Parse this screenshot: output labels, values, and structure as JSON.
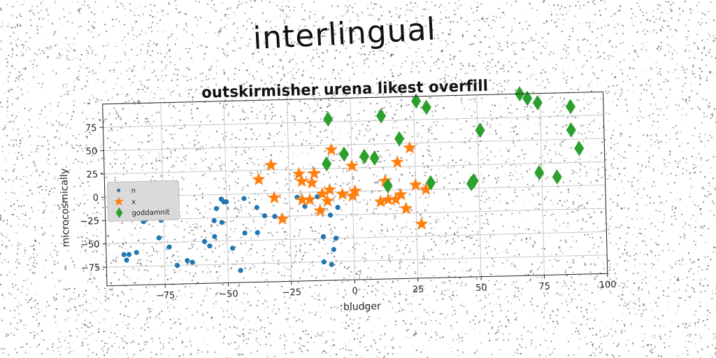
{
  "figure_title": "interlingual",
  "chart_data": {
    "type": "scatter",
    "title": "outskirmisher urena likest overfill",
    "xlabel": "bludger",
    "ylabel": "microcosmically",
    "xlim": [
      -98,
      100
    ],
    "ylim": [
      -95,
      100
    ],
    "xticks": [
      -75,
      -50,
      -25,
      0,
      25,
      50,
      75,
      100
    ],
    "xtick_labels": [
      "−75",
      "−50",
      "−25",
      "0",
      "25",
      "50",
      "75",
      "100"
    ],
    "yticks": [
      -75,
      -50,
      -25,
      0,
      25,
      50,
      75
    ],
    "ytick_labels": [
      "−75",
      "−50",
      "−25",
      "0",
      "25",
      "50",
      "75"
    ],
    "grid": true,
    "legend_position": "center-left",
    "series": [
      {
        "name": "n",
        "marker": "circle",
        "color": "#1f77b4",
        "points": [
          [
            -91,
            -62
          ],
          [
            -89,
            -62
          ],
          [
            -90,
            -68
          ],
          [
            -86,
            -60
          ],
          [
            -83,
            -27
          ],
          [
            -82,
            -25
          ],
          [
            -76,
            -26
          ],
          [
            -77,
            -45
          ],
          [
            -73,
            -15
          ],
          [
            -73,
            -55
          ],
          [
            -70,
            -75
          ],
          [
            -66,
            -70
          ],
          [
            -64,
            -72
          ],
          [
            -59,
            -50
          ],
          [
            -57,
            -55
          ],
          [
            -55,
            -45
          ],
          [
            -55,
            -28
          ],
          [
            -54,
            -15
          ],
          [
            -52,
            -5
          ],
          [
            -51,
            -8
          ],
          [
            -50,
            -8
          ],
          [
            -52,
            -30
          ],
          [
            -48,
            -58
          ],
          [
            -43,
            -42
          ],
          [
            -45,
            -82
          ],
          [
            -43,
            -5
          ],
          [
            -38,
            -15
          ],
          [
            -38,
            -42
          ],
          [
            -35,
            -24
          ],
          [
            -31,
            -25
          ],
          [
            -22,
            -5
          ],
          [
            -19,
            -15
          ],
          [
            -12,
            -48
          ],
          [
            -14,
            -5
          ],
          [
            -9,
            -25
          ],
          [
            -6,
            -17
          ],
          [
            -7,
            -50
          ],
          [
            -8,
            -62
          ],
          [
            -12,
            -75
          ],
          [
            -9,
            -78
          ]
        ]
      },
      {
        "name": "x",
        "marker": "star",
        "color": "#ff7f0e",
        "points": [
          [
            -37,
            15
          ],
          [
            -32,
            30
          ],
          [
            -31,
            -5
          ],
          [
            -28,
            -28
          ],
          [
            -21,
            20
          ],
          [
            -20,
            12
          ],
          [
            -20,
            -8
          ],
          [
            -17,
            -8
          ],
          [
            -16,
            10
          ],
          [
            -15,
            20
          ],
          [
            -13,
            -20
          ],
          [
            -12,
            -2
          ],
          [
            -10,
            -10
          ],
          [
            -9,
            2
          ],
          [
            -8,
            45
          ],
          [
            -4,
            -3
          ],
          [
            0,
            -5
          ],
          [
            0,
            27
          ],
          [
            1,
            0
          ],
          [
            11,
            -12
          ],
          [
            13,
            10
          ],
          [
            14,
            -10
          ],
          [
            17,
            -10
          ],
          [
            18,
            30
          ],
          [
            19,
            -5
          ],
          [
            21,
            -20
          ],
          [
            23,
            45
          ],
          [
            25,
            5
          ],
          [
            29,
            0
          ],
          [
            27,
            -37
          ]
        ]
      },
      {
        "name": "goddamnit",
        "marker": "thin_diamond",
        "color": "#2ca02c",
        "points": [
          [
            -9,
            78
          ],
          [
            -10,
            30
          ],
          [
            -3,
            40
          ],
          [
            5,
            37
          ],
          [
            9,
            35
          ],
          [
            12,
            80
          ],
          [
            14,
            5
          ],
          [
            19,
            55
          ],
          [
            26,
            95
          ],
          [
            30,
            88
          ],
          [
            31,
            7
          ],
          [
            47,
            5
          ],
          [
            48,
            8
          ],
          [
            51,
            62
          ],
          [
            67,
            100
          ],
          [
            70,
            95
          ],
          [
            74,
            90
          ],
          [
            74,
            15
          ],
          [
            81,
            10
          ],
          [
            87,
            85
          ],
          [
            87,
            60
          ],
          [
            90,
            40
          ]
        ]
      }
    ]
  },
  "colors": {
    "axis": "#222222",
    "grid": "#c8c8c8",
    "legend_bg": "#d9d9d9",
    "text": "#222222"
  }
}
